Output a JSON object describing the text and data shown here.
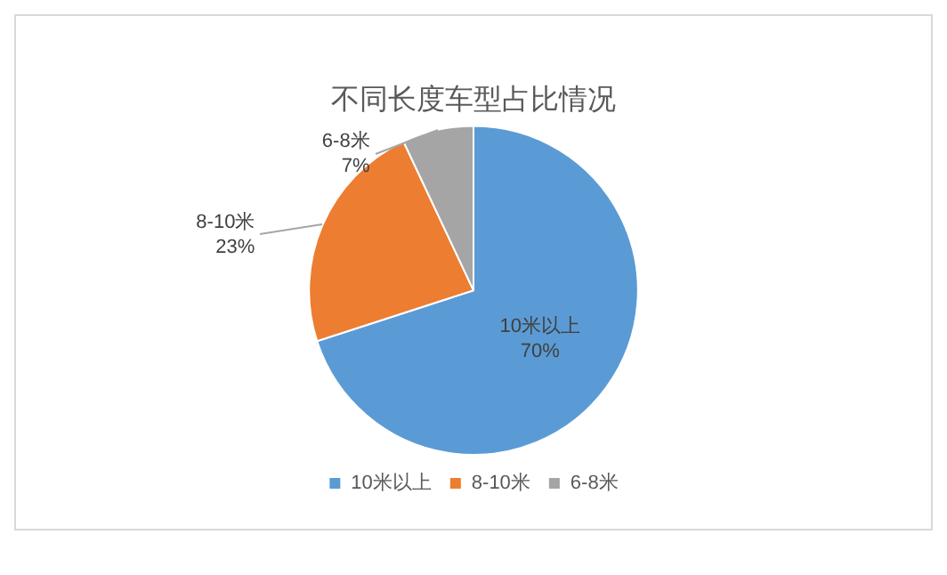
{
  "chart_data": {
    "type": "pie",
    "title": "不同长度车型占比情况",
    "categories": [
      "10米以上",
      "8-10米",
      "6-8米"
    ],
    "values": [
      70,
      23,
      7
    ],
    "value_labels": [
      "70%",
      "23%",
      "7%"
    ],
    "colors": [
      "#5b9bd5",
      "#ed7d31",
      "#a5a5a5"
    ],
    "legend": "bottom"
  }
}
